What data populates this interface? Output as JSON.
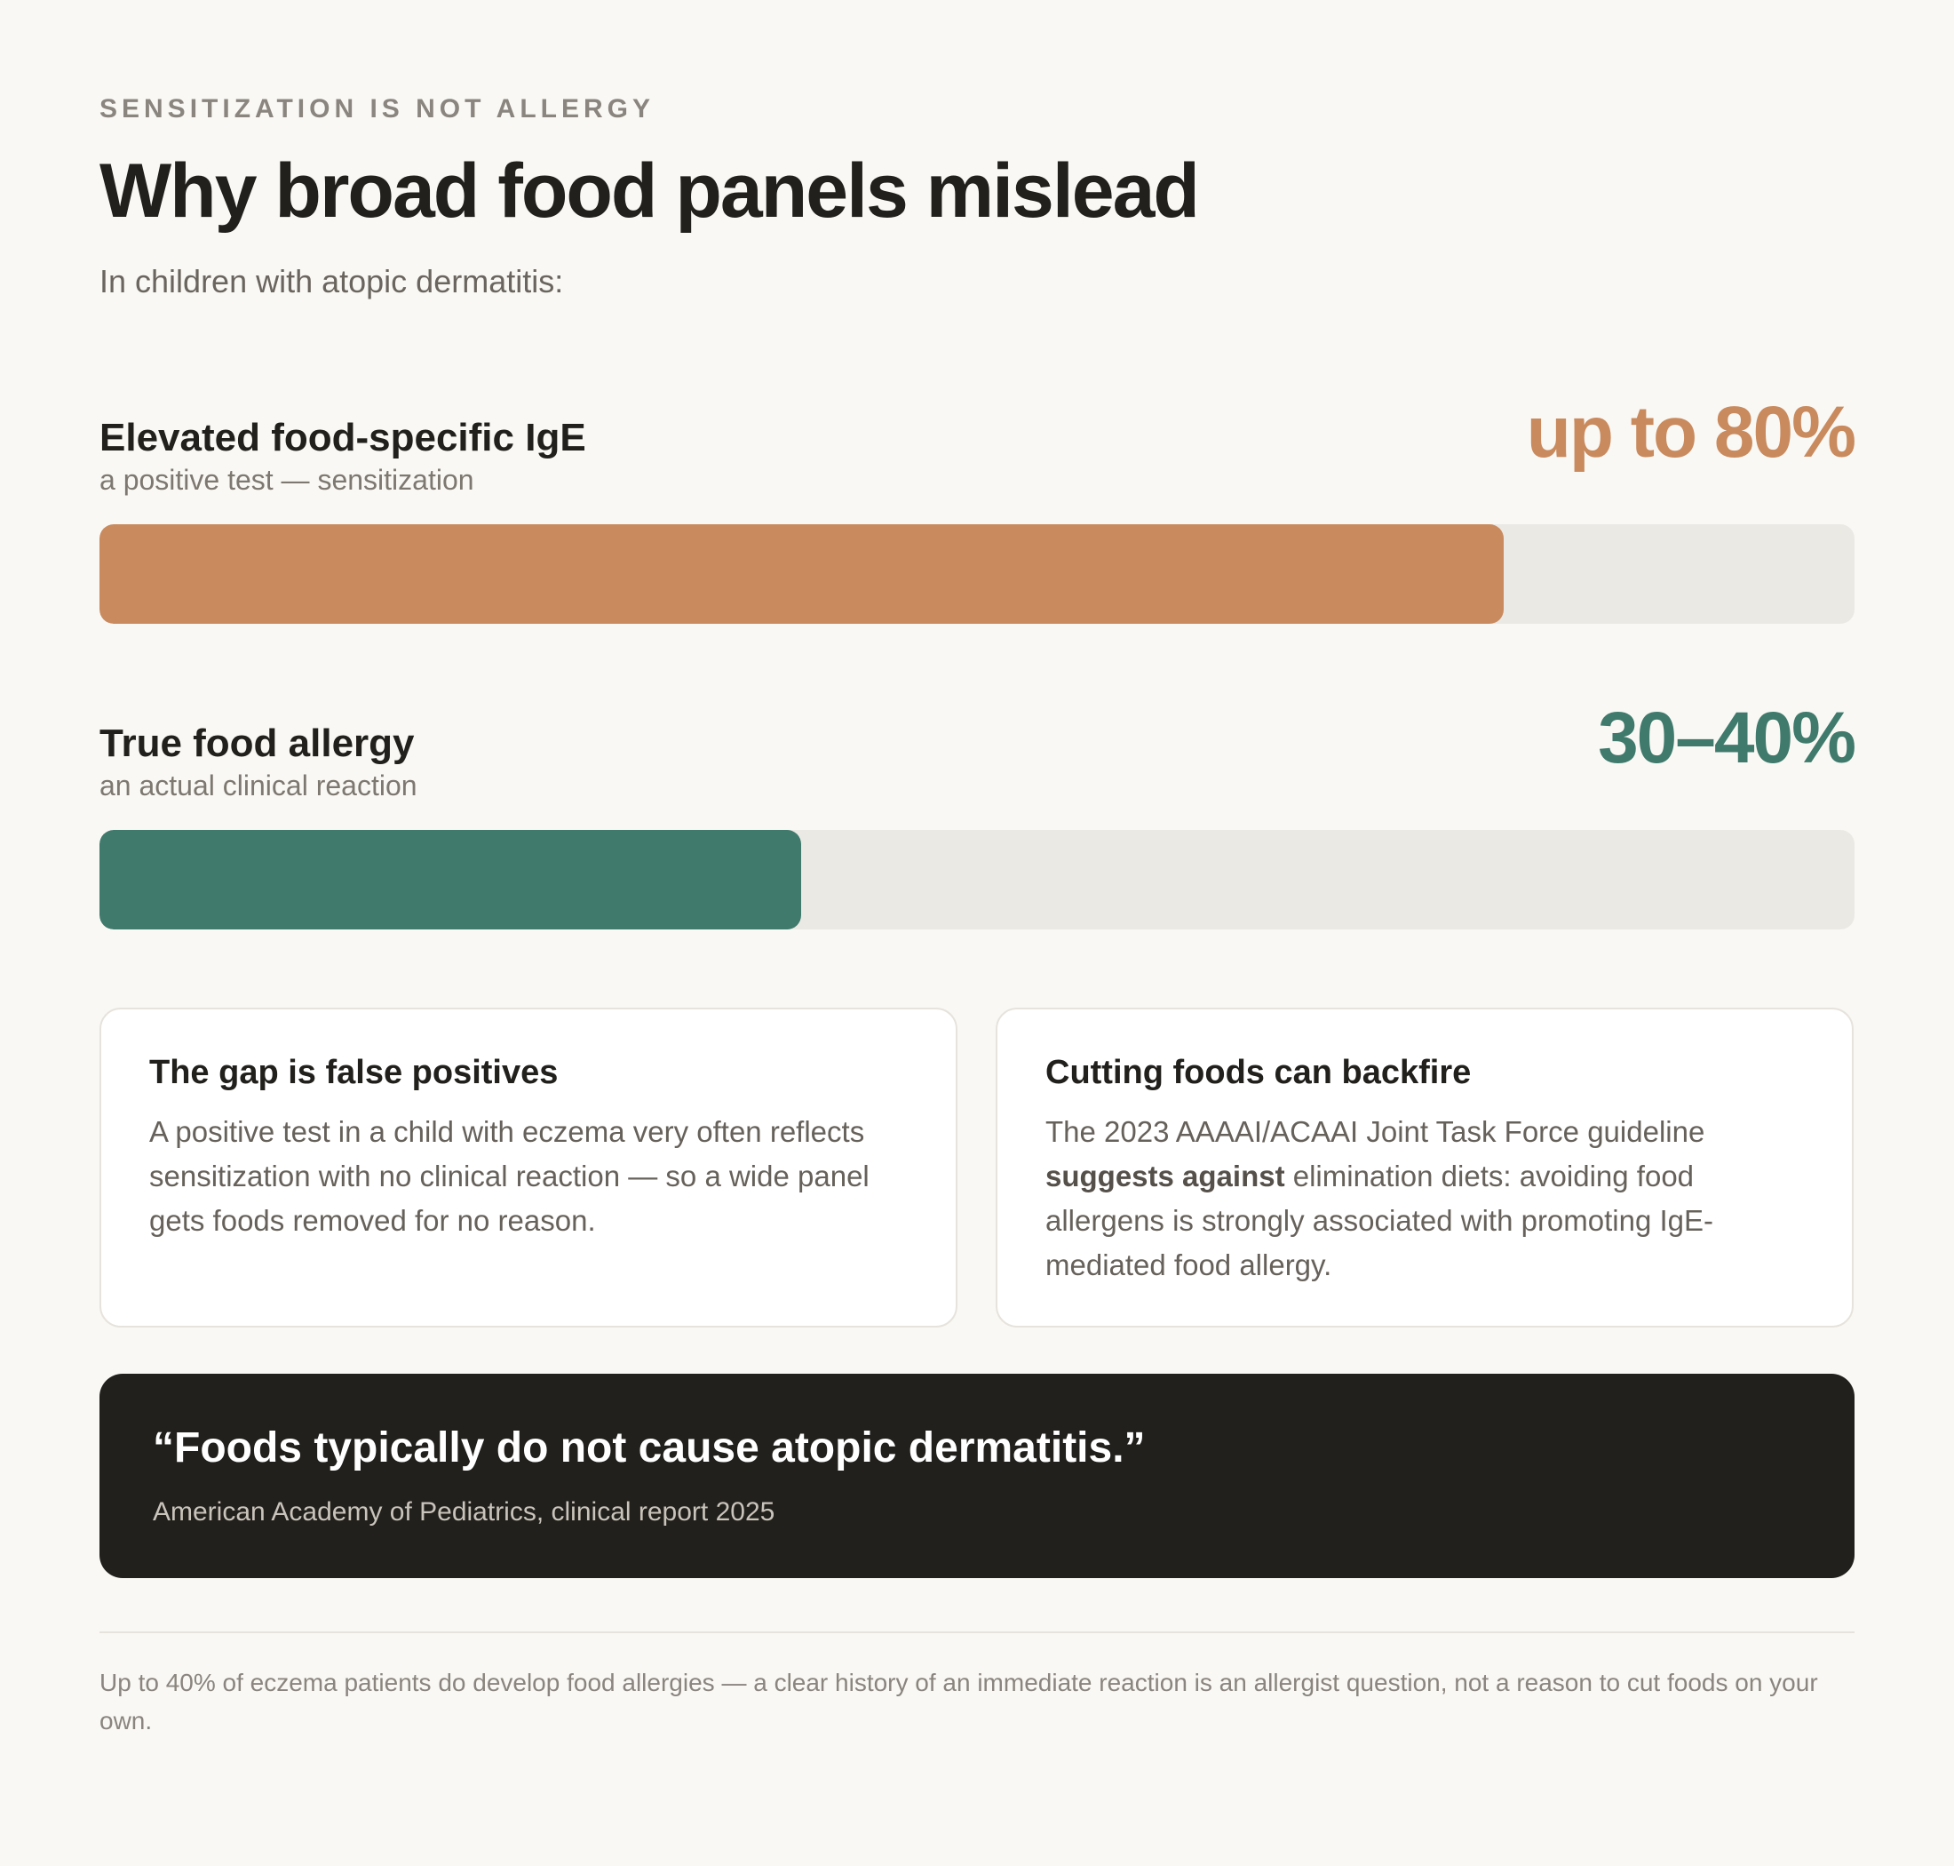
{
  "header": {
    "eyebrow": "SENSITIZATION IS NOT ALLERGY",
    "title": "Why broad food panels mislead",
    "subtitle": "In children with atopic dermatitis:"
  },
  "chart_data": {
    "type": "bar",
    "orientation": "horizontal",
    "xlim": [
      0,
      100
    ],
    "categories": [
      "Elevated food-specific IgE",
      "True food allergy"
    ],
    "values": [
      80,
      40
    ],
    "value_labels": [
      "up to 80%",
      "30–40%"
    ],
    "series": [
      {
        "label": "Elevated food-specific IgE",
        "sublabel": "a positive test — sensitization",
        "value_label": "up to 80%",
        "value": 80,
        "color": "#c98a5e"
      },
      {
        "label": "True food allergy",
        "sublabel": "an actual clinical reaction",
        "value_label": "30–40%",
        "value": 40,
        "range": [
          30,
          40
        ],
        "color": "#3f7a6c"
      }
    ],
    "track_color": "#ebe9e4"
  },
  "cards": {
    "left": {
      "title": "The gap is false positives",
      "body": "A positive test in a child with eczema very often reflects sensitization with no clinical reaction — so a wide panel gets foods removed for no reason."
    },
    "right": {
      "title": "Cutting foods can backfire",
      "body_pre": "The 2023 AAAAI/ACAAI Joint Task Force guideline ",
      "body_bold": "suggests against",
      "body_post": " elimination diets: avoiding food allergens is strongly associated with promoting IgE-mediated food allergy."
    }
  },
  "quote": {
    "text": "“Foods typically do not cause atopic dermatitis.”",
    "source": "American Academy of Pediatrics, clinical report 2025"
  },
  "footnote": "Up to 40% of eczema patients do develop food allergies — a clear history of an immediate reaction is an allergist question, not a reason to cut foods on your own."
}
